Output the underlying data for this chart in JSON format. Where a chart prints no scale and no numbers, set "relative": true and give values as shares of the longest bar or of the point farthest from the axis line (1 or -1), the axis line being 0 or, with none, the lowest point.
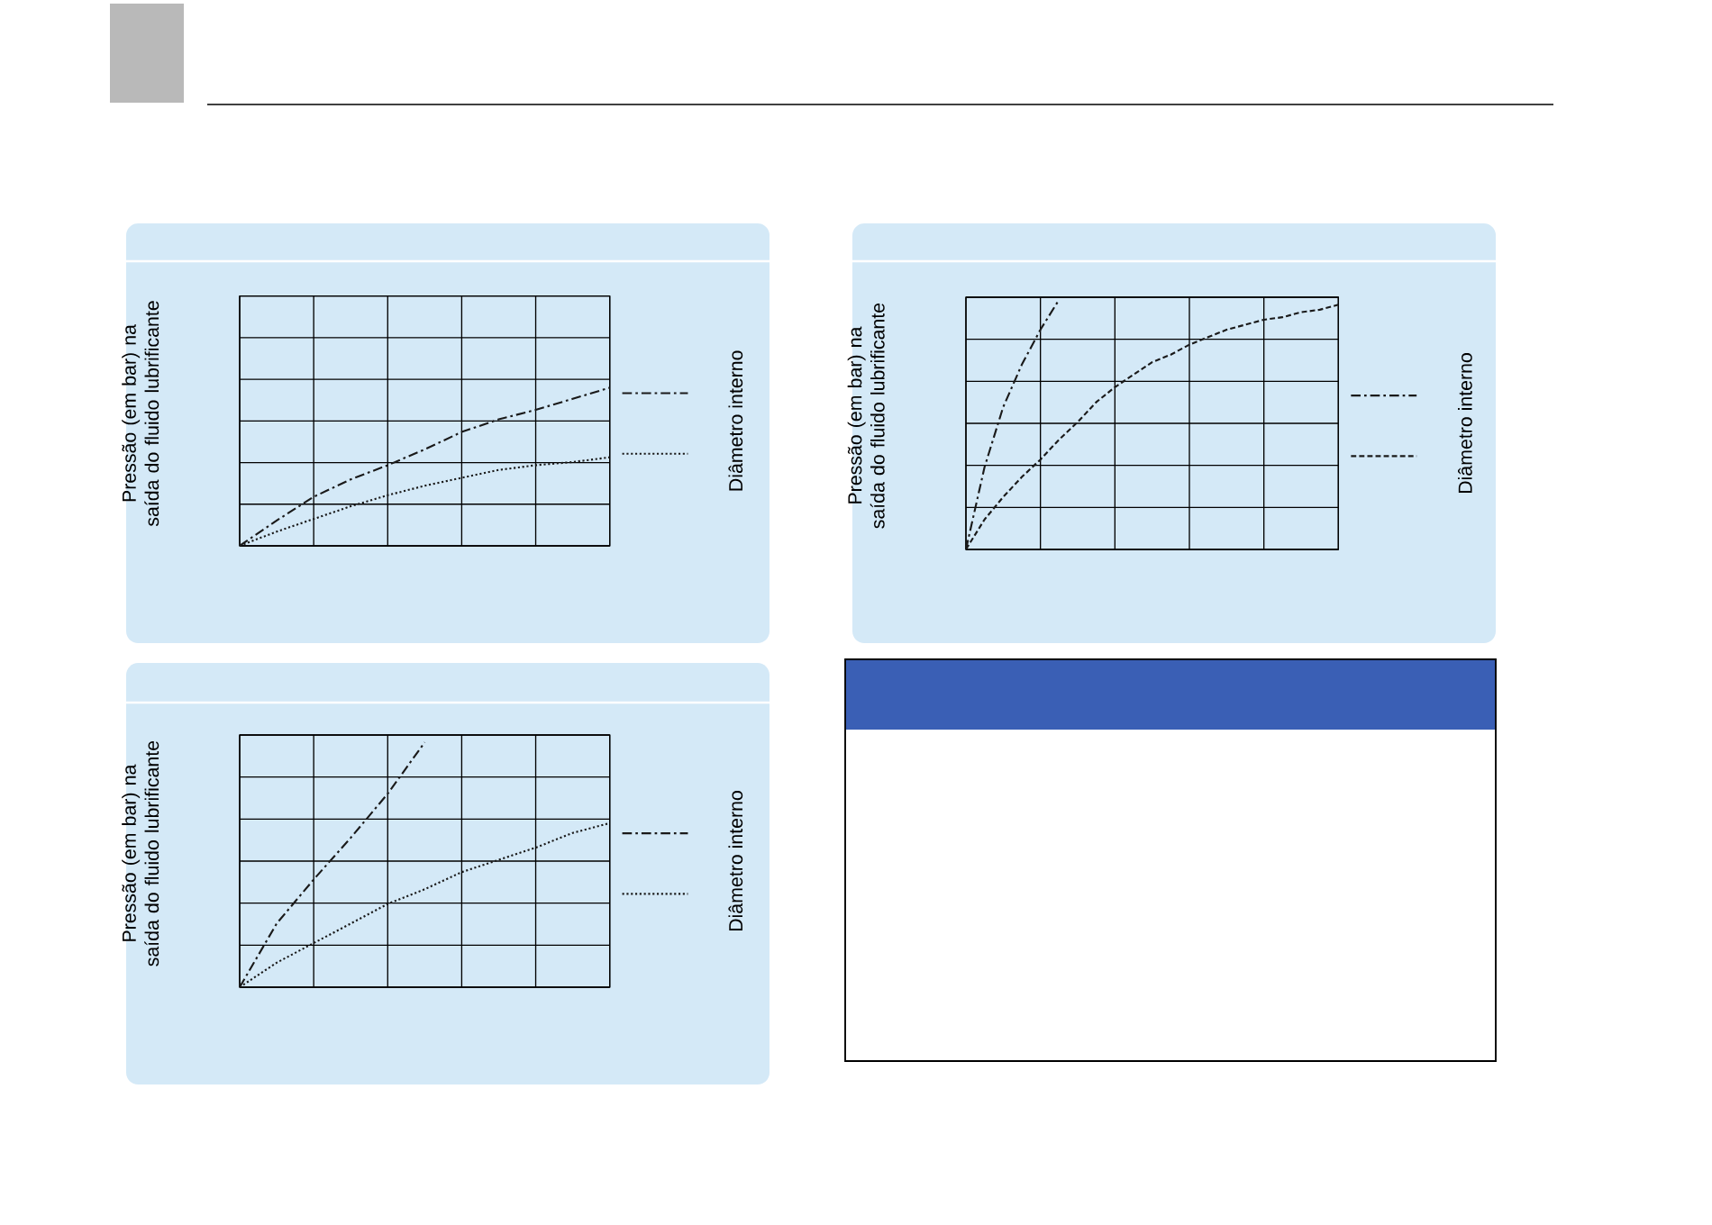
{
  "chart_data": [
    {
      "type": "line",
      "relative": true,
      "grid": true,
      "tick_labels": false,
      "marker": "none",
      "ylabel": "Pressão (em bar) na saída do fluido lubrificante",
      "legend_title": "Diâmetro interno",
      "categories": [
        null,
        null,
        null,
        null,
        null,
        null,
        null,
        null,
        null,
        null,
        null
      ],
      "series": [
        {
          "color": "#1a1a1a",
          "line_style": "dashdot",
          "values": [
            0,
            0.16,
            0.31,
            0.42,
            0.51,
            0.61,
            0.72,
            0.8,
            0.86,
            0.93,
            1
          ]
        },
        {
          "color": "#1a1a1a",
          "line_style": "dotted",
          "values": [
            0,
            0.09,
            0.17,
            0.25,
            0.32,
            0.38,
            0.43,
            0.48,
            0.51,
            0.53,
            0.56
          ]
        }
      ]
    },
    {
      "type": "line",
      "relative": true,
      "grid": true,
      "tick_labels": false,
      "marker": "none",
      "ylabel": "Pressão (em bar) na saída do fluido lubrificante",
      "legend_title": "Diâmetro interno",
      "categories": [
        null,
        null,
        null,
        null,
        null,
        null,
        null,
        null,
        null,
        null,
        null
      ],
      "series": [
        {
          "color": "#1a1a1a",
          "line_style": "dashdot",
          "values": [
            0,
            0.26,
            0.44,
            0.61,
            0.79,
            1,
            null,
            null,
            null,
            null,
            null
          ]
        },
        {
          "color": "#1a1a1a",
          "line_style": "dotted",
          "values": [
            0,
            0.1,
            0.18,
            0.26,
            0.34,
            0.4,
            0.47,
            0.52,
            0.57,
            0.63,
            0.67
          ]
        }
      ]
    },
    {
      "type": "line",
      "relative": true,
      "grid": true,
      "tick_labels": false,
      "marker": "none",
      "ylabel": "Pressão (em bar) na saída do fluido lubrificante",
      "legend_title": "Diâmetro interno",
      "categories": [
        null,
        null,
        null,
        null,
        null,
        null,
        null,
        null,
        null,
        null,
        null,
        null,
        null,
        null,
        null,
        null,
        null,
        null,
        null,
        null,
        null
      ],
      "series": [
        {
          "color": "#1a1a1a",
          "line_style": "dashdot",
          "values": [
            0,
            0.33,
            0.57,
            0.74,
            0.88,
            1,
            null,
            null,
            null,
            null,
            null,
            null,
            null,
            null,
            null,
            null,
            null,
            null,
            null,
            null,
            null
          ]
        },
        {
          "color": "#1a1a1a",
          "line_style": "dashed",
          "values": [
            0,
            0.12,
            0.21,
            0.29,
            0.36,
            0.44,
            0.51,
            0.59,
            0.65,
            0.7,
            0.75,
            0.78,
            0.82,
            0.85,
            0.88,
            0.9,
            0.92,
            0.93,
            0.95,
            0.96,
            0.98
          ]
        }
      ]
    }
  ]
}
